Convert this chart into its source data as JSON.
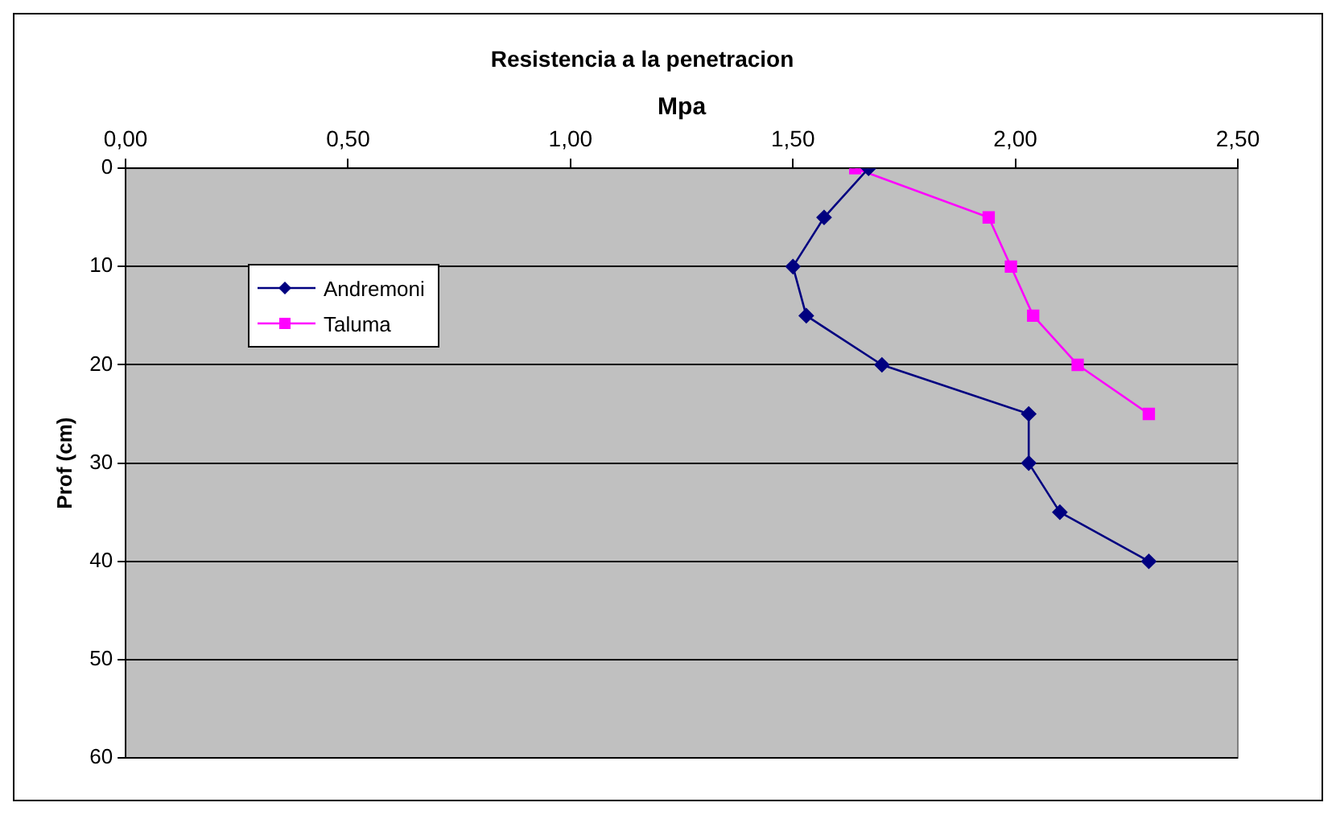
{
  "chart_data": {
    "type": "line",
    "title": "Resistencia a la penetracion",
    "xlabel": "Mpa",
    "ylabel": "Prof (cm)",
    "xlim": [
      0,
      2.5
    ],
    "xticks": [
      {
        "value": 0,
        "label": "0,00"
      },
      {
        "value": 0.5,
        "label": "0,50"
      },
      {
        "value": 1,
        "label": "1,00"
      },
      {
        "value": 1.5,
        "label": "1,50"
      },
      {
        "value": 2,
        "label": "2,00"
      },
      {
        "value": 2.5,
        "label": "2,50"
      }
    ],
    "ylim": [
      60,
      0
    ],
    "yticks": [
      0,
      10,
      20,
      30,
      40,
      50,
      60
    ],
    "grid": "y",
    "legend": "left",
    "line_style": "solid",
    "series": [
      {
        "name": "Andremoni",
        "color": "#000080",
        "marker": "diamond",
        "x": [
          1.67,
          1.57,
          1.5,
          1.53,
          1.7,
          2.03,
          2.03,
          2.1,
          2.3
        ],
        "values": [
          0,
          5,
          10,
          15,
          20,
          25,
          30,
          35,
          40
        ]
      },
      {
        "name": "Taluma",
        "color": "#ff00ff",
        "marker": "square",
        "x": [
          1.64,
          1.94,
          1.99,
          2.04,
          2.14,
          2.3
        ],
        "values": [
          0,
          5,
          10,
          15,
          20,
          25
        ]
      }
    ]
  }
}
